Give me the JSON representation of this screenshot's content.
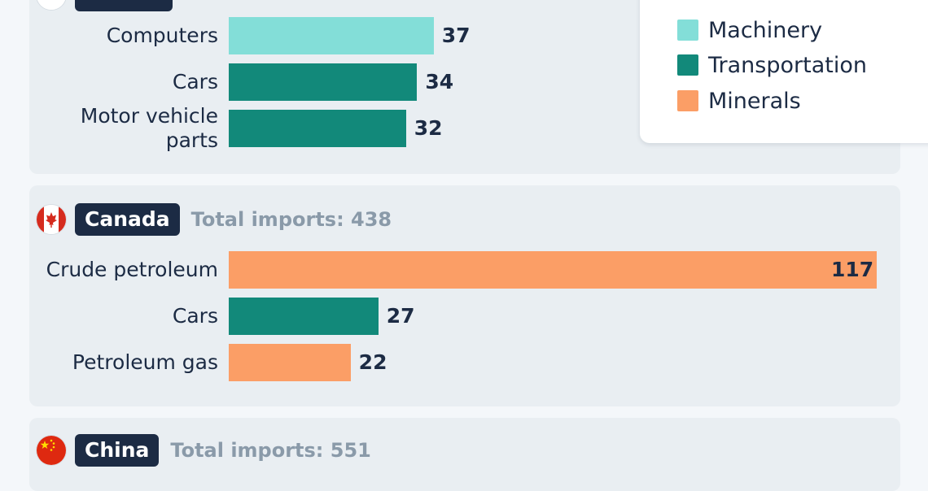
{
  "colors": {
    "Machinery": "#83ded8",
    "Transportation": "#12897a",
    "Minerals": "#fb9e66",
    "badge": "#1c2b44",
    "panel": "#e9eef2"
  },
  "legend": {
    "items": [
      {
        "label": "Machinery",
        "category": "Machinery"
      },
      {
        "label": "Transportation",
        "category": "Transportation"
      },
      {
        "label": "Minerals",
        "category": "Minerals"
      }
    ]
  },
  "chart_data": {
    "type": "bar",
    "orientation": "horizontal",
    "grid": false,
    "legend_position": "top-right",
    "xlim": [
      0,
      117
    ],
    "groups": [
      {
        "country": "",
        "total_label": "",
        "flag": "partially-visible-flag-icon",
        "bars": [
          {
            "label": "Computers",
            "value": 37,
            "category": "Machinery"
          },
          {
            "label": "Cars",
            "value": 34,
            "category": "Transportation"
          },
          {
            "label": "Motor vehicle parts",
            "label_lines": [
              "Motor vehicle",
              "parts"
            ],
            "value": 32,
            "category": "Transportation"
          }
        ]
      },
      {
        "country": "Canada",
        "total_label": "Total imports: 438",
        "flag": "canada-flag-icon",
        "bars": [
          {
            "label": "Crude petroleum",
            "value": 117,
            "category": "Minerals"
          },
          {
            "label": "Cars",
            "value": 27,
            "category": "Transportation"
          },
          {
            "label": "Petroleum gas",
            "value": 22,
            "category": "Minerals"
          }
        ]
      },
      {
        "country": "China",
        "total_label": "Total imports: 551",
        "flag": "china-flag-icon",
        "bars": []
      }
    ]
  }
}
